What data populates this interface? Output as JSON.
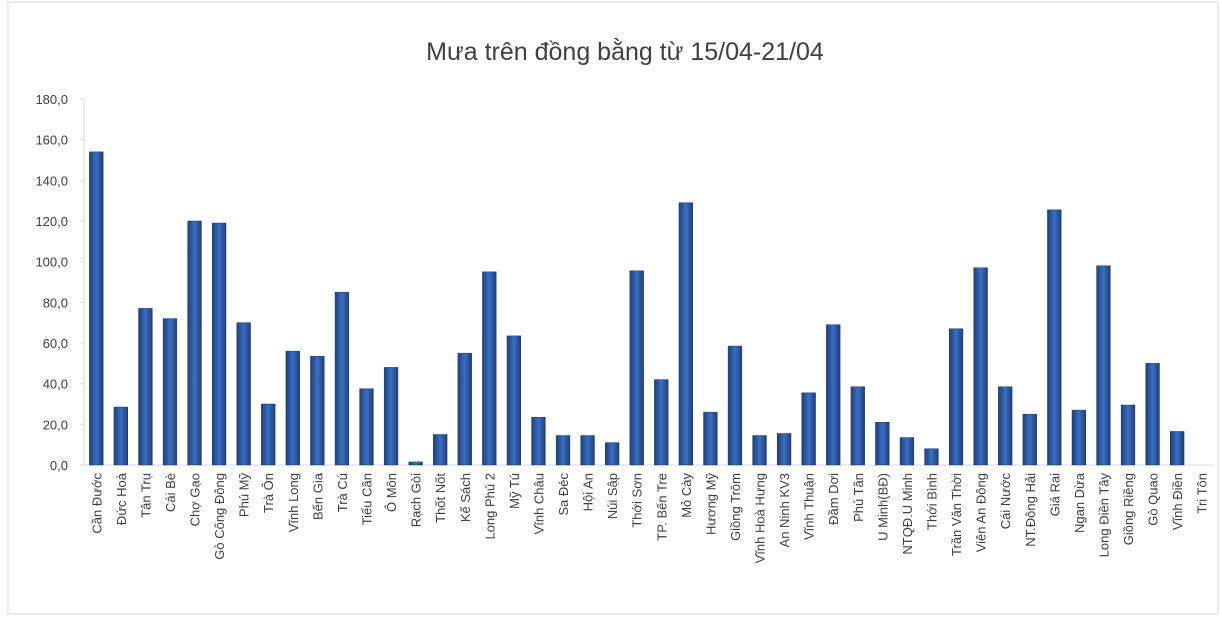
{
  "chart_data": {
    "type": "bar",
    "title": "Mưa trên đồng bằng từ 15/04-21/04",
    "categories": [
      "Cần Đước",
      "Đức Hoà",
      "Tân Trụ",
      "Cái Bè",
      "Chợ Gạo",
      "Gò Công Đông",
      "Phú Mỹ",
      "Trà Ôn",
      "Vĩnh Long",
      "Bến Gia",
      "Trà Cú",
      "Tiểu Cần",
      "Ô Môn",
      "Rạch Gòi",
      "Thốt Nốt",
      "Kế Sách",
      "Long Phú 2",
      "Mỹ Tú",
      "Vĩnh Châu",
      "Sa Đéc",
      "Hội An",
      "Núi Sập",
      "Thới Sơn",
      "TP. Bến Tre",
      "Mỏ Cày",
      "Hương Mỹ",
      "Giồng Trôm",
      "Vĩnh Hoà Hưng",
      "An Ninh KV3",
      "Vĩnh Thuận",
      "Đầm Dơi",
      "Phú Tân",
      "U Minh(BĐ)",
      "NTQĐ.U Minh",
      "Thới Bình",
      "Trần Văn Thời",
      "Viên An Đông",
      "Cái Nước",
      "NT.Đông Hải",
      "Giá Rai",
      "Ngan Dừa",
      "Long Điền Tây",
      "Giồng Riềng",
      "Gò Quao",
      "Vĩnh Điền",
      "Tri Tôn"
    ],
    "values": [
      154,
      28.5,
      77,
      72,
      120,
      119,
      70,
      30,
      56,
      53.5,
      85,
      37.5,
      48,
      1.5,
      15,
      55,
      95,
      63.5,
      23.5,
      14.5,
      14.5,
      11,
      95.5,
      42,
      129,
      26,
      58.5,
      14.5,
      15.5,
      35.5,
      69,
      38.5,
      21,
      13.5,
      8,
      67,
      97,
      38.5,
      25,
      125.5,
      27,
      98,
      29.5,
      50,
      16.5,
      0
    ],
    "color": "#2e5ca8",
    "ylim": [
      0,
      180
    ],
    "yticks": [
      {
        "value": 0,
        "label": "0,0"
      },
      {
        "value": 20,
        "label": "20,0"
      },
      {
        "value": 40,
        "label": "40,0"
      },
      {
        "value": 60,
        "label": "60,0"
      },
      {
        "value": 80,
        "label": "80,0"
      },
      {
        "value": 100,
        "label": "100,0"
      },
      {
        "value": 120,
        "label": "120,0"
      },
      {
        "value": 140,
        "label": "140,0"
      },
      {
        "value": 160,
        "label": "160,0"
      },
      {
        "value": 180,
        "label": "180,0"
      }
    ],
    "grid": false
  }
}
